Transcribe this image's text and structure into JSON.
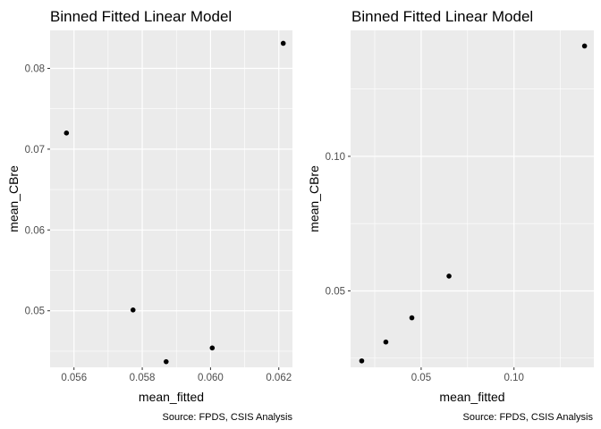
{
  "chart_data": [
    {
      "type": "scatter",
      "title": "Binned Fitted Linear Model",
      "xlabel": "mean_fitted",
      "ylabel": "mean_CBre",
      "caption": "Source: FPDS, CSIS Analysis",
      "xlim": [
        0.0553,
        0.0624
      ],
      "ylim": [
        0.043,
        0.0847
      ],
      "xticks": [
        0.056,
        0.058,
        0.06,
        0.062
      ],
      "xtick_labels": [
        "0.056",
        "0.058",
        "0.060",
        "0.062"
      ],
      "yticks": [
        0.05,
        0.06,
        0.07,
        0.08
      ],
      "ytick_labels": [
        "0.05",
        "0.06",
        "0.07",
        "0.08"
      ],
      "grid": true,
      "background": "#ebebeb",
      "point_color": "#000000",
      "points": [
        {
          "x": 0.05578,
          "y": 0.072
        },
        {
          "x": 0.05773,
          "y": 0.0501
        },
        {
          "x": 0.0587,
          "y": 0.0437
        },
        {
          "x": 0.06005,
          "y": 0.0454
        },
        {
          "x": 0.06213,
          "y": 0.0831
        }
      ]
    },
    {
      "type": "scatter",
      "title": "Binned Fitted Linear Model",
      "xlabel": "mean_fitted",
      "ylabel": "mean_CBre",
      "caption": "Source: FPDS, CSIS Analysis",
      "xlim": [
        0.012,
        0.143
      ],
      "ylim": [
        0.0216,
        0.1468
      ],
      "xticks": [
        0.05,
        0.1
      ],
      "xtick_labels": [
        "0.05",
        "0.10"
      ],
      "yticks": [
        0.05,
        0.1
      ],
      "ytick_labels": [
        "0.05",
        "0.10"
      ],
      "grid": true,
      "background": "#ebebeb",
      "point_color": "#000000",
      "points": [
        {
          "x": 0.018,
          "y": 0.024
        },
        {
          "x": 0.031,
          "y": 0.031
        },
        {
          "x": 0.045,
          "y": 0.04
        },
        {
          "x": 0.065,
          "y": 0.0555
        },
        {
          "x": 0.138,
          "y": 0.141
        }
      ]
    }
  ]
}
